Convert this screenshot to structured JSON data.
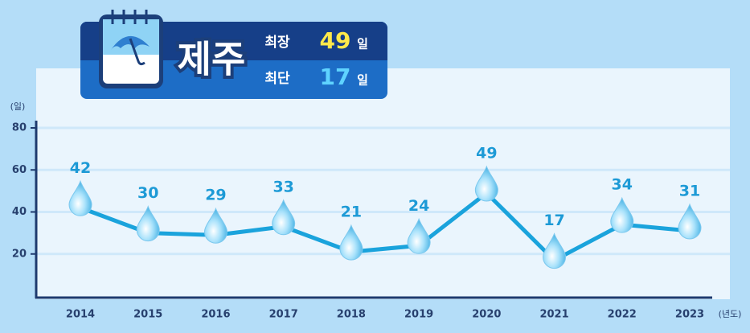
{
  "chart_data": {
    "type": "line",
    "badge": {
      "region": "제주",
      "max_label": "최장",
      "max_value": 49,
      "min_label": "최단",
      "min_value": 17,
      "unit": "일"
    },
    "y_label": "(일)",
    "x_label": "(년도)",
    "categories": [
      "2014",
      "2015",
      "2016",
      "2017",
      "2018",
      "2019",
      "2020",
      "2021",
      "2022",
      "2023"
    ],
    "values": [
      42,
      30,
      29,
      33,
      21,
      24,
      49,
      17,
      34,
      31
    ],
    "color": "#1aa3dc",
    "ylim": [
      0,
      80
    ],
    "yticks": [
      20,
      40,
      60,
      80
    ],
    "grid": true
  }
}
